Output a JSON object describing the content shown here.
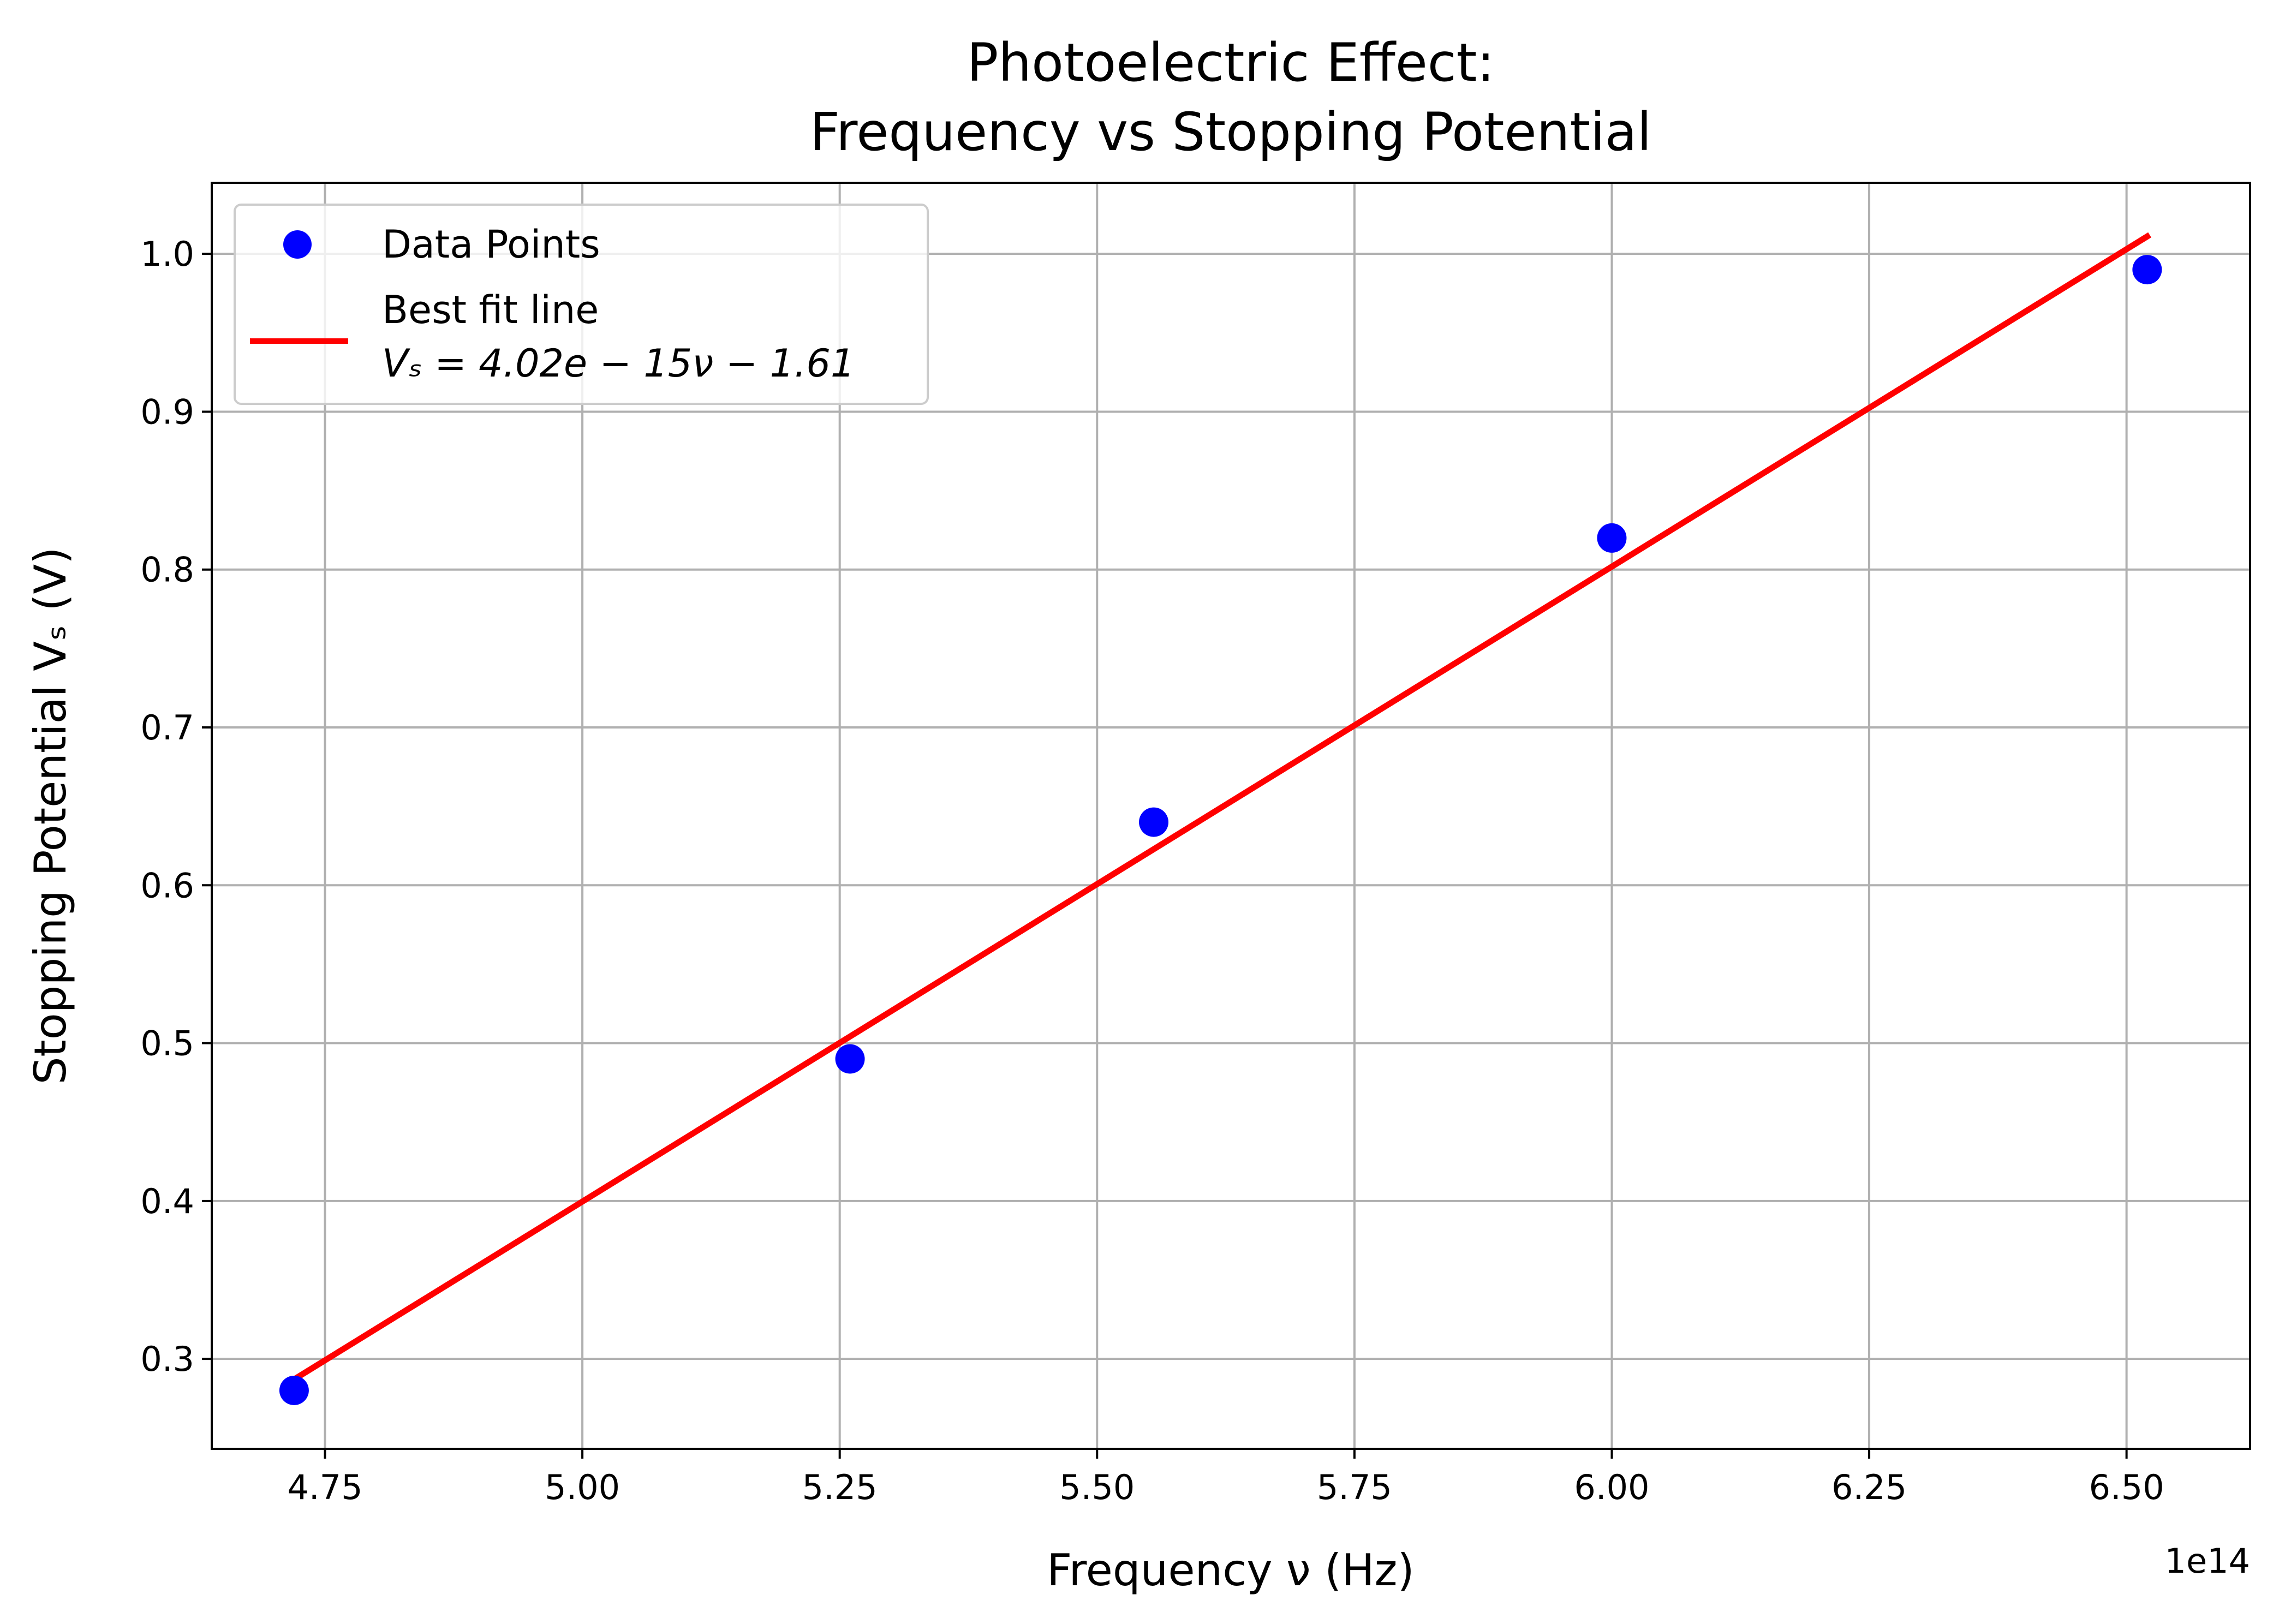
{
  "chart_data": {
    "type": "scatter",
    "title_lines": [
      "Photoelectric Effect:",
      "Frequency vs Stopping Potential"
    ],
    "xlabel": "Frequency ν (Hz)",
    "ylabel": "Stopping Potential Vₛ (V)",
    "x_offset_label": "1e14",
    "xlim": [
      4.64,
      6.62
    ],
    "ylim": [
      0.243,
      1.045
    ],
    "x_ticks": [
      4.75,
      5.0,
      5.25,
      5.5,
      5.75,
      6.0,
      6.25,
      6.5
    ],
    "x_tick_labels": [
      "4.75",
      "5.00",
      "5.25",
      "5.50",
      "5.75",
      "6.00",
      "6.25",
      "6.50"
    ],
    "y_ticks": [
      0.3,
      0.4,
      0.5,
      0.6,
      0.7,
      0.8,
      0.9,
      1.0
    ],
    "y_tick_labels": [
      "0.3",
      "0.4",
      "0.5",
      "0.6",
      "0.7",
      "0.8",
      "0.9",
      "1.0"
    ],
    "grid": true,
    "legend_position": "top-left",
    "series": [
      {
        "name": "Data Points",
        "kind": "scatter",
        "color": "#0000ff",
        "x": [
          4.72,
          5.26,
          5.555,
          6.0,
          6.52
        ],
        "y": [
          0.28,
          0.49,
          0.64,
          0.82,
          0.99
        ]
      },
      {
        "name": "Best fit line",
        "equation": "Vₛ = 4.02e − 15ν − 1.61",
        "kind": "line",
        "color": "#ff0000",
        "x": [
          4.72,
          6.52
        ],
        "y": [
          0.287,
          1.011
        ]
      }
    ]
  }
}
